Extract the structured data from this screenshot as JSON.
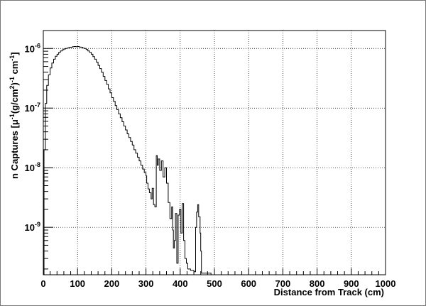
{
  "chart_data": {
    "type": "line",
    "style": "step histogram",
    "title": "",
    "xlabel": "Distance from Track (cm)",
    "ylabel_prefix": "n Captures [",
    "ylabel_mu": "μ",
    "ylabel_mu_exp": "-1",
    "ylabel_mid": "(g/cm",
    "ylabel_sq": "2",
    "ylabel_close": ")",
    "ylabel_close_exp": "-1",
    "ylabel_cm": " cm",
    "ylabel_cm_exp": "-1",
    "ylabel_end": "]",
    "x_scale": "linear",
    "y_scale": "log",
    "xlim": [
      0,
      1000
    ],
    "ylim": [
      1.6e-10,
      2e-06
    ],
    "grid": true,
    "x_ticks": [
      {
        "value": 0,
        "label": "0"
      },
      {
        "value": 100,
        "label": "100"
      },
      {
        "value": 200,
        "label": "200"
      },
      {
        "value": 300,
        "label": "300"
      },
      {
        "value": 400,
        "label": "400"
      },
      {
        "value": 500,
        "label": "500"
      },
      {
        "value": 600,
        "label": "600"
      },
      {
        "value": 700,
        "label": "700"
      },
      {
        "value": 800,
        "label": "800"
      },
      {
        "value": 900,
        "label": "900"
      },
      {
        "value": 1000,
        "label": "1000"
      }
    ],
    "y_ticks": [
      {
        "value": 1e-09,
        "base": "10",
        "exp": "-9"
      },
      {
        "value": 1e-08,
        "base": "10",
        "exp": "-8"
      },
      {
        "value": 1e-07,
        "base": "10",
        "exp": "-7"
      },
      {
        "value": 1e-06,
        "base": "10",
        "exp": "-6"
      }
    ],
    "series": [
      {
        "color": "#000000",
        "points": [
          [
            2,
            2e-08
          ],
          [
            6,
            1.2e-07
          ],
          [
            10,
            2.4e-07
          ],
          [
            15,
            3.6e-07
          ],
          [
            20,
            4.7e-07
          ],
          [
            25,
            5.7e-07
          ],
          [
            30,
            6.6e-07
          ],
          [
            35,
            7.4e-07
          ],
          [
            40,
            8e-07
          ],
          [
            45,
            8.6e-07
          ],
          [
            50,
            9.1e-07
          ],
          [
            55,
            9.5e-07
          ],
          [
            60,
            9.8e-07
          ],
          [
            65,
            1e-06
          ],
          [
            70,
            1.02e-06
          ],
          [
            75,
            1.04e-06
          ],
          [
            80,
            1.05e-06
          ],
          [
            85,
            1.07e-06
          ],
          [
            90,
            1.08e-06
          ],
          [
            95,
            1.07e-06
          ],
          [
            100,
            1.08e-06
          ],
          [
            105,
            1.06e-06
          ],
          [
            110,
            1.05e-06
          ],
          [
            115,
            1.02e-06
          ],
          [
            120,
            1e-06
          ],
          [
            125,
            9.6e-07
          ],
          [
            130,
            9.1e-07
          ],
          [
            135,
            8.6e-07
          ],
          [
            140,
            8e-07
          ],
          [
            145,
            7.3e-07
          ],
          [
            150,
            6.6e-07
          ],
          [
            155,
            5.9e-07
          ],
          [
            160,
            5.2e-07
          ],
          [
            165,
            4.6e-07
          ],
          [
            170,
            4e-07
          ],
          [
            175,
            3.4e-07
          ],
          [
            180,
            2.9e-07
          ],
          [
            185,
            2.5e-07
          ],
          [
            190,
            2.1e-07
          ],
          [
            195,
            1.8e-07
          ],
          [
            200,
            1.5e-07
          ],
          [
            205,
            1.3e-07
          ],
          [
            210,
            1.1e-07
          ],
          [
            215,
            9.4e-08
          ],
          [
            220,
            8e-08
          ],
          [
            225,
            6.9e-08
          ],
          [
            230,
            5.9e-08
          ],
          [
            235,
            5e-08
          ],
          [
            240,
            4.3e-08
          ],
          [
            245,
            3.7e-08
          ],
          [
            250,
            3.2e-08
          ],
          [
            255,
            2.75e-08
          ],
          [
            260,
            2.4e-08
          ],
          [
            265,
            2e-08
          ],
          [
            270,
            1.75e-08
          ],
          [
            275,
            1.5e-08
          ],
          [
            280,
            1.3e-08
          ],
          [
            285,
            1.1e-08
          ],
          [
            290,
            9.5e-09
          ],
          [
            295,
            8.3e-09
          ],
          [
            300,
            7.3e-09
          ],
          [
            302,
            5.5e-09
          ],
          [
            306,
            4.4e-09
          ],
          [
            310,
            3.8e-09
          ],
          [
            315,
            3e-09
          ],
          [
            318,
            4.5e-09
          ],
          [
            322,
            2.4e-09
          ],
          [
            326,
            2.2e-09
          ],
          [
            330,
            1.6e-08
          ],
          [
            333,
            1.1e-08
          ],
          [
            336,
            1.4e-08
          ],
          [
            340,
            9e-09
          ],
          [
            345,
            1.3e-08
          ],
          [
            350,
            7e-09
          ],
          [
            355,
            1e-08
          ],
          [
            360,
            5.5e-09
          ],
          [
            365,
            2.6e-09
          ],
          [
            370,
            1.4e-09
          ],
          [
            375,
            2.2e-09
          ],
          [
            378,
            9e-10
          ],
          [
            380,
            4.5e-10
          ],
          [
            383,
            6e-10
          ],
          [
            386,
            1.7e-09
          ],
          [
            390,
            2.5e-10
          ],
          [
            394,
            1.6e-09
          ],
          [
            398,
            2e-09
          ],
          [
            402,
            8e-10
          ],
          [
            406,
            2.5e-09
          ],
          [
            410,
            6e-10
          ],
          [
            414,
            3e-10
          ],
          [
            418,
            2.5e-10
          ],
          [
            422,
            2e-10
          ],
          [
            430,
            1.9e-10
          ],
          [
            440,
            1.8e-10
          ],
          [
            445,
            1e-09
          ],
          [
            448,
            1.8e-09
          ],
          [
            451,
            2.4e-09
          ],
          [
            454,
            1.5e-09
          ],
          [
            458,
            8e-10
          ],
          [
            460,
            4e-10
          ],
          [
            462,
            1.7e-10
          ],
          [
            490,
            1.6e-10
          ]
        ]
      }
    ]
  }
}
